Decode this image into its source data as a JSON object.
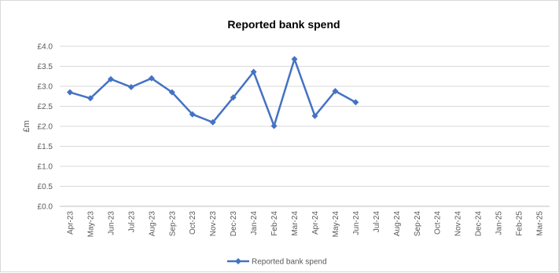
{
  "chart_data": {
    "type": "line",
    "title": "Reported bank spend",
    "ylabel": "£m",
    "xlabel": "",
    "ylim": [
      0,
      4.0
    ],
    "y_ticks": [
      0.0,
      0.5,
      1.0,
      1.5,
      2.0,
      2.5,
      3.0,
      3.5,
      4.0
    ],
    "y_tick_labels": [
      "£0.0",
      "£0.5",
      "£1.0",
      "£1.5",
      "£2.0",
      "£2.5",
      "£3.0",
      "£3.5",
      "£4.0"
    ],
    "categories": [
      "Apr-23",
      "May-23",
      "Jun-23",
      "Jul-23",
      "Aug-23",
      "Sep-23",
      "Oct-23",
      "Nov-23",
      "Dec-23",
      "Jan-24",
      "Feb-24",
      "Mar-24",
      "Apr-24",
      "May-24",
      "Jun-24",
      "Jul-24",
      "Aug-24",
      "Sep-24",
      "Oct-24",
      "Nov-24",
      "Dec-24",
      "Jan-25",
      "Feb-25",
      "Mar-25"
    ],
    "series": [
      {
        "name": "Reported bank spend",
        "color": "#4472c4",
        "values": [
          2.85,
          2.7,
          3.18,
          2.98,
          3.2,
          2.85,
          2.3,
          2.1,
          2.72,
          3.36,
          2.01,
          3.68,
          2.26,
          2.88,
          2.6,
          null,
          null,
          null,
          null,
          null,
          null,
          null,
          null,
          null
        ]
      }
    ],
    "grid": true,
    "legend": "bottom"
  }
}
